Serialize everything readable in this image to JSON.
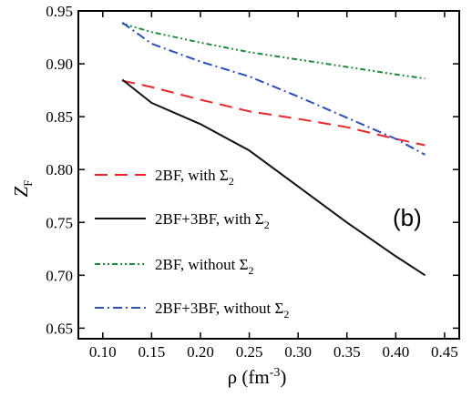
{
  "chart_data": {
    "type": "line",
    "title": "",
    "panel_label": "(b)",
    "xlabel": {
      "base": "ρ (fm",
      "sup": "-3",
      "tail": ")"
    },
    "ylabel": {
      "base": "Z",
      "sub": "F"
    },
    "xlim": [
      0.075,
      0.465
    ],
    "ylim": [
      0.64,
      0.95
    ],
    "xticks": [
      0.1,
      0.15,
      0.2,
      0.25,
      0.3,
      0.35,
      0.4,
      0.45
    ],
    "xtick_labels": [
      "0.10",
      "0.15",
      "0.20",
      "0.25",
      "0.30",
      "0.35",
      "0.40",
      "0.45"
    ],
    "yticks": [
      0.65,
      0.7,
      0.75,
      0.8,
      0.85,
      0.9,
      0.95
    ],
    "ytick_labels": [
      "0.65",
      "0.70",
      "0.75",
      "0.80",
      "0.85",
      "0.90",
      "0.95"
    ],
    "grid": false,
    "legend_position": "lower-left",
    "series": [
      {
        "name": "2BF, with Σ",
        "name_sub": "2",
        "color": "#e8262b",
        "dash": "14,8",
        "x": [
          0.12,
          0.15,
          0.2,
          0.25,
          0.3,
          0.35,
          0.4,
          0.43
        ],
        "y": [
          0.884,
          0.878,
          0.866,
          0.855,
          0.848,
          0.84,
          0.829,
          0.823
        ]
      },
      {
        "name": "2BF+3BF, with Σ",
        "name_sub": "2",
        "color": "#111111",
        "dash": "",
        "x": [
          0.12,
          0.15,
          0.2,
          0.25,
          0.3,
          0.35,
          0.4,
          0.43
        ],
        "y": [
          0.885,
          0.863,
          0.843,
          0.818,
          0.784,
          0.75,
          0.718,
          0.7
        ]
      },
      {
        "name": "2BF, without Σ",
        "name_sub": "2",
        "color": "#1f8a3c",
        "dash": "6,3,2,3,2,3",
        "x": [
          0.12,
          0.15,
          0.2,
          0.25,
          0.3,
          0.35,
          0.4,
          0.43
        ],
        "y": [
          0.938,
          0.93,
          0.92,
          0.911,
          0.904,
          0.897,
          0.89,
          0.886
        ]
      },
      {
        "name": "2BF+3BF, without Σ",
        "name_sub": "2",
        "color": "#2b4fb5",
        "dash": "10,4,2,4",
        "x": [
          0.12,
          0.15,
          0.2,
          0.25,
          0.3,
          0.35,
          0.4,
          0.43
        ],
        "y": [
          0.939,
          0.919,
          0.902,
          0.888,
          0.869,
          0.849,
          0.829,
          0.814
        ]
      }
    ]
  }
}
